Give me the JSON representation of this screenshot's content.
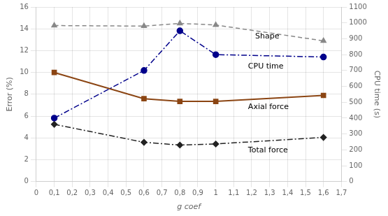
{
  "chart_data": {
    "type": "line",
    "x": [
      0.1,
      0.6,
      0.8,
      1.0,
      1.6
    ],
    "series": [
      {
        "values": [
          14.3,
          14.25,
          14.5,
          14.35,
          12.9
        ],
        "color": "#888888",
        "marker": "triangle",
        "line_style": "dashed",
        "axis": "y"
      },
      {
        "values": [
          400,
          700,
          950,
          800,
          785
        ],
        "color": "#00008B",
        "marker": "circle",
        "line_style": "dashdot",
        "axis": "y2"
      },
      {
        "values": [
          10.0,
          7.6,
          7.35,
          7.35,
          7.9
        ],
        "color": "#8B4513",
        "marker": "square",
        "line_style": "solid",
        "axis": "y"
      },
      {
        "values": [
          5.25,
          3.6,
          3.35,
          3.45,
          4.05
        ],
        "color": "#222222",
        "marker": "diamond",
        "line_style": "dashdot",
        "axis": "y"
      }
    ],
    "xlabel": "g coef",
    "ylabel": "Error (%)",
    "y2label": "CPU time (s)",
    "xlim": [
      0,
      1.7
    ],
    "ylim": [
      0,
      16
    ],
    "y2lim": [
      0,
      1100
    ],
    "xticks": [
      0,
      {
        "value": 0.1,
        "label": "0,1"
      },
      {
        "value": 0.2,
        "label": "0,2"
      },
      {
        "value": 0.3,
        "label": "0,3"
      },
      {
        "value": 0.4,
        "label": "0,4"
      },
      {
        "value": 0.5,
        "label": "0,5"
      },
      {
        "value": 0.6,
        "label": "0,6"
      },
      {
        "value": 0.7,
        "label": "0,7"
      },
      {
        "value": 0.8,
        "label": "0,8"
      },
      {
        "value": 0.9,
        "label": "0,9"
      },
      1,
      {
        "value": 1.1,
        "label": "1,1"
      },
      {
        "value": 1.2,
        "label": "1,2"
      },
      {
        "value": 1.3,
        "label": "1,3"
      },
      {
        "value": 1.4,
        "label": "1,4"
      },
      {
        "value": 1.5,
        "label": "1,5"
      },
      {
        "value": 1.6,
        "label": "1,6"
      },
      {
        "value": 1.7,
        "label": "1,7"
      }
    ],
    "yticks": [
      0,
      2,
      4,
      6,
      8,
      10,
      12,
      14,
      16
    ],
    "y2ticks": [
      0,
      100,
      200,
      300,
      400,
      500,
      600,
      700,
      800,
      900,
      1000,
      1100
    ],
    "grid": true,
    "annotations": [
      {
        "text": "Shape",
        "x": 1.22,
        "y": 13.3
      },
      {
        "text": "CPU time",
        "x": 1.18,
        "y": 10.55
      },
      {
        "text": "Axial force",
        "x": 1.18,
        "y": 6.85
      },
      {
        "text": "Total force",
        "x": 1.18,
        "y": 2.85
      }
    ]
  }
}
